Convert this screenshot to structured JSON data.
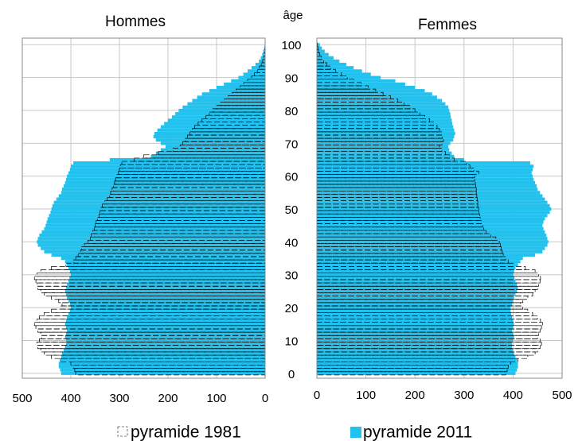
{
  "chart_data": {
    "type": "pyramid",
    "left_title": "Hommes",
    "right_title": "Femmes",
    "y_label": "âge",
    "ages": [
      0,
      1,
      2,
      3,
      4,
      5,
      6,
      7,
      8,
      9,
      10,
      11,
      12,
      13,
      14,
      15,
      16,
      17,
      18,
      19,
      20,
      21,
      22,
      23,
      24,
      25,
      26,
      27,
      28,
      29,
      30,
      31,
      32,
      33,
      34,
      35,
      36,
      37,
      38,
      39,
      40,
      41,
      42,
      43,
      44,
      45,
      46,
      47,
      48,
      49,
      50,
      51,
      52,
      53,
      54,
      55,
      56,
      57,
      58,
      59,
      60,
      61,
      62,
      63,
      64,
      65,
      66,
      67,
      68,
      69,
      70,
      71,
      72,
      73,
      74,
      75,
      76,
      77,
      78,
      79,
      80,
      81,
      82,
      83,
      84,
      85,
      86,
      87,
      88,
      89,
      90,
      91,
      92,
      93,
      94,
      95,
      96,
      97,
      98,
      99,
      100
    ],
    "series": [
      {
        "name": "pyramide 1981",
        "color": "#000000",
        "style": "dashed-outline",
        "men": [
          390,
          392,
          395,
          400,
          420,
          440,
          455,
          462,
          468,
          470,
          465,
          460,
          462,
          468,
          472,
          475,
          470,
          465,
          455,
          440,
          420,
          418,
          425,
          440,
          455,
          462,
          468,
          470,
          472,
          475,
          470,
          462,
          440,
          410,
          395,
          390,
          385,
          380,
          378,
          372,
          365,
          360,
          358,
          355,
          352,
          350,
          348,
          345,
          342,
          340,
          338,
          335,
          330,
          325,
          320,
          318,
          315,
          312,
          310,
          308,
          305,
          302,
          300,
          298,
          295,
          270,
          250,
          220,
          190,
          175,
          170,
          165,
          160,
          155,
          150,
          145,
          138,
          130,
          122,
          115,
          108,
          100,
          92,
          84,
          76,
          68,
          60,
          52,
          44,
          36,
          28,
          22,
          16,
          12,
          8,
          5,
          3,
          2,
          1,
          1,
          0
        ],
        "women": [
          385,
          388,
          390,
          395,
          410,
          430,
          445,
          450,
          455,
          458,
          455,
          450,
          452,
          455,
          458,
          460,
          456,
          450,
          440,
          430,
          420,
          415,
          420,
          430,
          440,
          445,
          450,
          452,
          455,
          456,
          452,
          445,
          425,
          400,
          390,
          385,
          380,
          378,
          376,
          374,
          372,
          365,
          355,
          345,
          340,
          338,
          335,
          333,
          332,
          330,
          330,
          328,
          328,
          327,
          326,
          325,
          325,
          324,
          323,
          322,
          322,
          330,
          320,
          312,
          305,
          280,
          270,
          262,
          255,
          250,
          255,
          258,
          256,
          254,
          250,
          245,
          238,
          230,
          220,
          210,
          200,
          190,
          178,
          165,
          150,
          135,
          120,
          105,
          90,
          75,
          62,
          50,
          38,
          28,
          20,
          14,
          9,
          6,
          3,
          2,
          1
        ]
      },
      {
        "name": "pyramide 2011",
        "color": "#22c1ee",
        "style": "filled",
        "men": [
          420,
          422,
          425,
          425,
          423,
          420,
          418,
          415,
          412,
          410,
          410,
          412,
          410,
          408,
          410,
          412,
          410,
          408,
          405,
          402,
          400,
          402,
          405,
          408,
          410,
          412,
          410,
          408,
          405,
          403,
          400,
          402,
          405,
          408,
          412,
          420,
          440,
          455,
          462,
          468,
          470,
          468,
          465,
          460,
          455,
          452,
          450,
          448,
          445,
          442,
          440,
          438,
          435,
          430,
          425,
          420,
          418,
          415,
          412,
          410,
          408,
          405,
          402,
          400,
          395,
          320,
          235,
          225,
          215,
          205,
          215,
          225,
          230,
          228,
          222,
          215,
          208,
          200,
          192,
          185,
          178,
          170,
          160,
          150,
          140,
          130,
          115,
          100,
          85,
          70,
          55,
          45,
          36,
          28,
          20,
          13,
          9,
          6,
          4,
          2,
          1
        ],
        "women": [
          405,
          408,
          410,
          410,
          408,
          405,
          402,
          400,
          398,
          398,
          400,
          402,
          400,
          398,
          400,
          402,
          400,
          398,
          396,
          395,
          395,
          398,
          400,
          402,
          405,
          408,
          410,
          408,
          405,
          403,
          400,
          402,
          405,
          410,
          415,
          420,
          445,
          460,
          465,
          470,
          472,
          470,
          468,
          465,
          462,
          460,
          462,
          465,
          470,
          475,
          478,
          475,
          470,
          465,
          460,
          455,
          450,
          448,
          445,
          442,
          440,
          438,
          440,
          442,
          435,
          300,
          280,
          275,
          270,
          268,
          272,
          278,
          280,
          282,
          280,
          278,
          276,
          275,
          273,
          272,
          270,
          268,
          262,
          255,
          245,
          235,
          220,
          200,
          180,
          160,
          130,
          110,
          92,
          75,
          60,
          46,
          34,
          24,
          16,
          10,
          6
        ]
      }
    ],
    "xlim": [
      0,
      500
    ],
    "xticks": [
      0,
      100,
      200,
      300,
      400,
      500
    ],
    "ylim": [
      -1.5,
      102
    ],
    "yticks": [
      0,
      10,
      20,
      30,
      40,
      50,
      60,
      70,
      80,
      90,
      100
    ],
    "grid": true
  }
}
